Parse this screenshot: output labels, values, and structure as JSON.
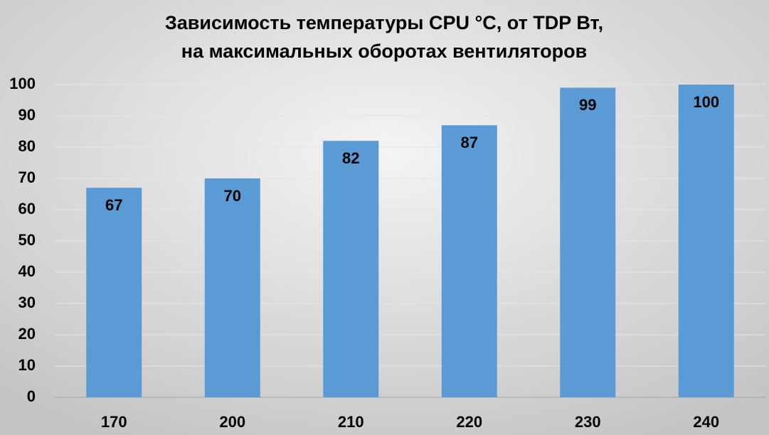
{
  "chart_data": {
    "type": "bar",
    "title": [
      "Зависимость температуры CPU °C, от TDP Вт,",
      "на максимальных оборотах вентиляторов"
    ],
    "categories": [
      "170",
      "200",
      "210",
      "220",
      "230",
      "240"
    ],
    "values": [
      67,
      70,
      82,
      87,
      99,
      100
    ],
    "color": "#5b9bd5",
    "ylim": [
      0,
      100
    ],
    "yticks": [
      0,
      10,
      20,
      30,
      40,
      50,
      60,
      70,
      80,
      90,
      100
    ],
    "grid": true,
    "data_labels": true
  }
}
